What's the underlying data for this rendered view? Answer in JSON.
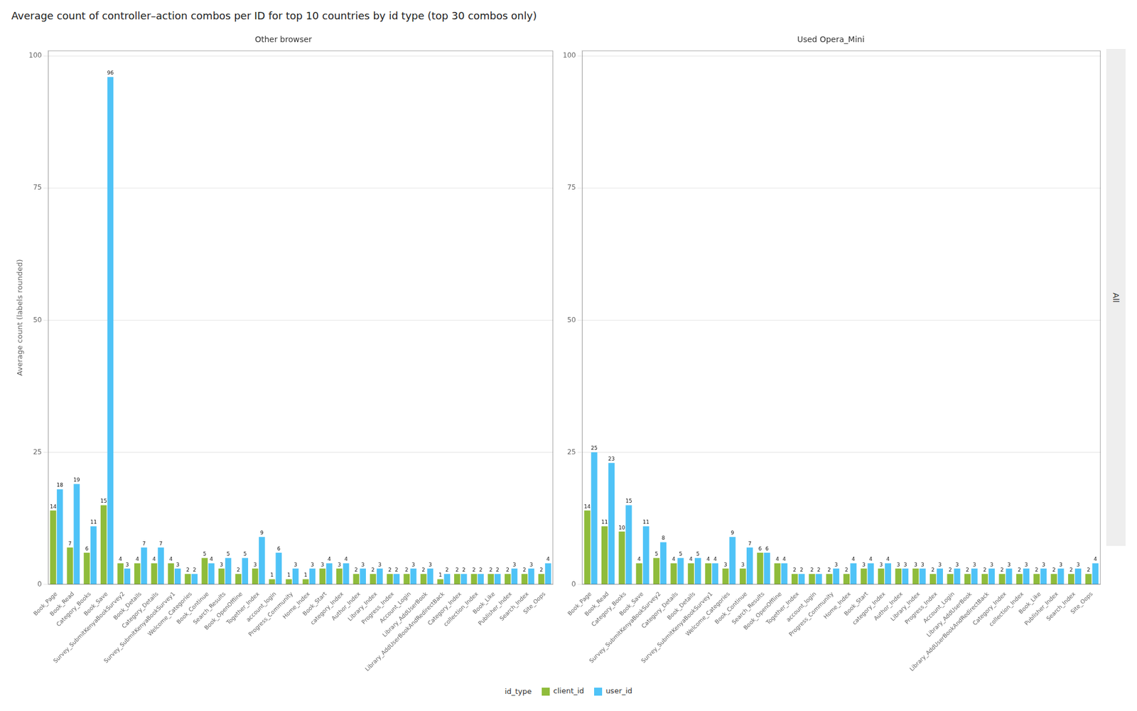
{
  "chart_data": [
    {
      "type": "bar",
      "title": "Average count of controller–action combos per ID for top 10 countries by id type (top 30 combos only)",
      "subtitle": "Other browser",
      "ylabel": "Average count (labels rounded)",
      "legend_title": "id_type",
      "legend": "bottom",
      "categories": [
        "Book_Page",
        "Book_Read",
        "Category_Books",
        "Book_Save",
        "Survey_SubmitKenyaBookSurvey2",
        "Book_Details",
        "Category_Details",
        "Survey_SubmitKenyaBookSurvey1",
        "Welcome_Categories",
        "Book_Continue",
        "Search_Results",
        "Book_OpenOffline",
        "Together_Index",
        "account_login",
        "Progress_Community",
        "Home_Index",
        "Book_Start",
        "category_Index",
        "Author_Index",
        "Library_Index",
        "Progress_Index",
        "Account_Login",
        "Library_AddUserBook",
        "Library_AddUserBookAndRedirectBack",
        "Category_Index",
        "collection_Index",
        "Book_Like",
        "Publisher_Index",
        "Search_Index",
        "Site_Oops"
      ],
      "series": [
        {
          "name": "client_id",
          "color": "#8fbc3b",
          "values": [
            14,
            7,
            6,
            15,
            4,
            4,
            4,
            4,
            2,
            5,
            3,
            2,
            3,
            1,
            1,
            1,
            3,
            3,
            2,
            2,
            2,
            2,
            2,
            1,
            2,
            2,
            2,
            2,
            2,
            2
          ]
        },
        {
          "name": "user_id",
          "color": "#4fc3f7",
          "values": [
            18,
            19,
            11,
            96,
            3,
            7,
            7,
            3,
            2,
            4,
            5,
            5,
            9,
            6,
            3,
            3,
            4,
            4,
            3,
            3,
            2,
            3,
            3,
            2,
            2,
            2,
            2,
            3,
            3,
            4
          ]
        }
      ],
      "ylim": [
        0,
        101
      ],
      "yticks": [
        0,
        25,
        50,
        75,
        100
      ],
      "grid": true,
      "data_labels": true
    },
    {
      "type": "bar",
      "subtitle": "Used Opera_Mini",
      "annotations": [
        {
          "text": "All"
        }
      ],
      "categories": [
        "Book_Page",
        "Book_Read",
        "Category_Books",
        "Book_Save",
        "Survey_SubmitKenyaBookSurvey2",
        "Category_Details",
        "Book_Details",
        "Survey_SubmitKenyaBookSurvey1",
        "Welcome_Categories",
        "Book_Continue",
        "Search_Results",
        "Book_OpenOffline",
        "Together_Index",
        "account_login",
        "Progress_Community",
        "Home_Index",
        "Book_Start",
        "category_Index",
        "Author_Index",
        "Library_Index",
        "Progress_Index",
        "Account_Login",
        "Library_AddUserBook",
        "Library_AddUserBookAndRedirectBack",
        "Category_Index",
        "collection_Index",
        "Book_Like",
        "Publisher_Index",
        "Search_Index",
        "Site_Oops"
      ],
      "series": [
        {
          "name": "client_id",
          "color": "#8fbc3b",
          "values": [
            14,
            11,
            10,
            4,
            5,
            4,
            4,
            4,
            3,
            3,
            6,
            4,
            2,
            2,
            2,
            2,
            3,
            3,
            3,
            3,
            2,
            2,
            2,
            2,
            2,
            2,
            2,
            2,
            2,
            2
          ]
        },
        {
          "name": "user_id",
          "color": "#4fc3f7",
          "values": [
            25,
            23,
            15,
            11,
            8,
            5,
            5,
            4,
            9,
            7,
            6,
            4,
            2,
            2,
            3,
            4,
            4,
            4,
            3,
            3,
            3,
            3,
            3,
            3,
            3,
            3,
            3,
            3,
            3,
            4
          ]
        }
      ],
      "ylim": [
        0,
        101
      ],
      "yticks": [
        0,
        25,
        50,
        75,
        100
      ],
      "grid": true,
      "data_labels": true
    }
  ]
}
